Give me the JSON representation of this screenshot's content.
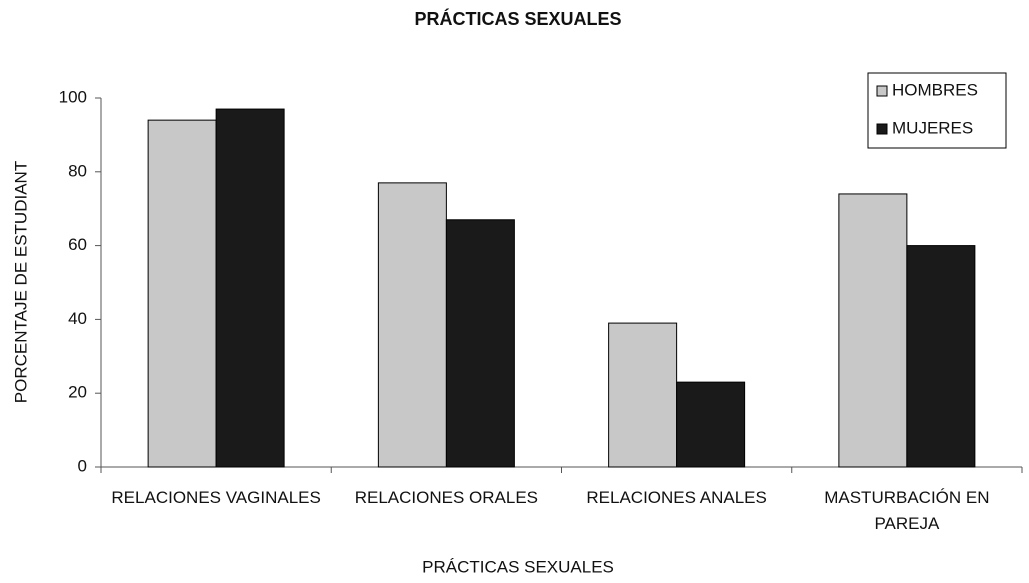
{
  "chart_data": {
    "type": "bar",
    "title": "PRÁCTICAS SEXUALES",
    "x_label": "PRÁCTICAS SEXUALES",
    "y_label": "PORCENTAJE DE ESTUDIANT",
    "categories": [
      "RELACIONES VAGINALES",
      "RELACIONES ORALES",
      "RELACIONES ANALES",
      "MASTURBACIÓN EN PAREJA"
    ],
    "series": [
      {
        "name": "HOMBRES",
        "color": "#c8c8c8",
        "values": [
          94,
          77,
          39,
          74
        ]
      },
      {
        "name": "MUJERES",
        "color": "#1a1a1a",
        "values": [
          97,
          67,
          23,
          60
        ]
      }
    ],
    "ylim": [
      0,
      100
    ],
    "yticks": [
      0,
      20,
      40,
      60,
      80,
      100
    ],
    "grid": false,
    "legend": "upper right"
  }
}
